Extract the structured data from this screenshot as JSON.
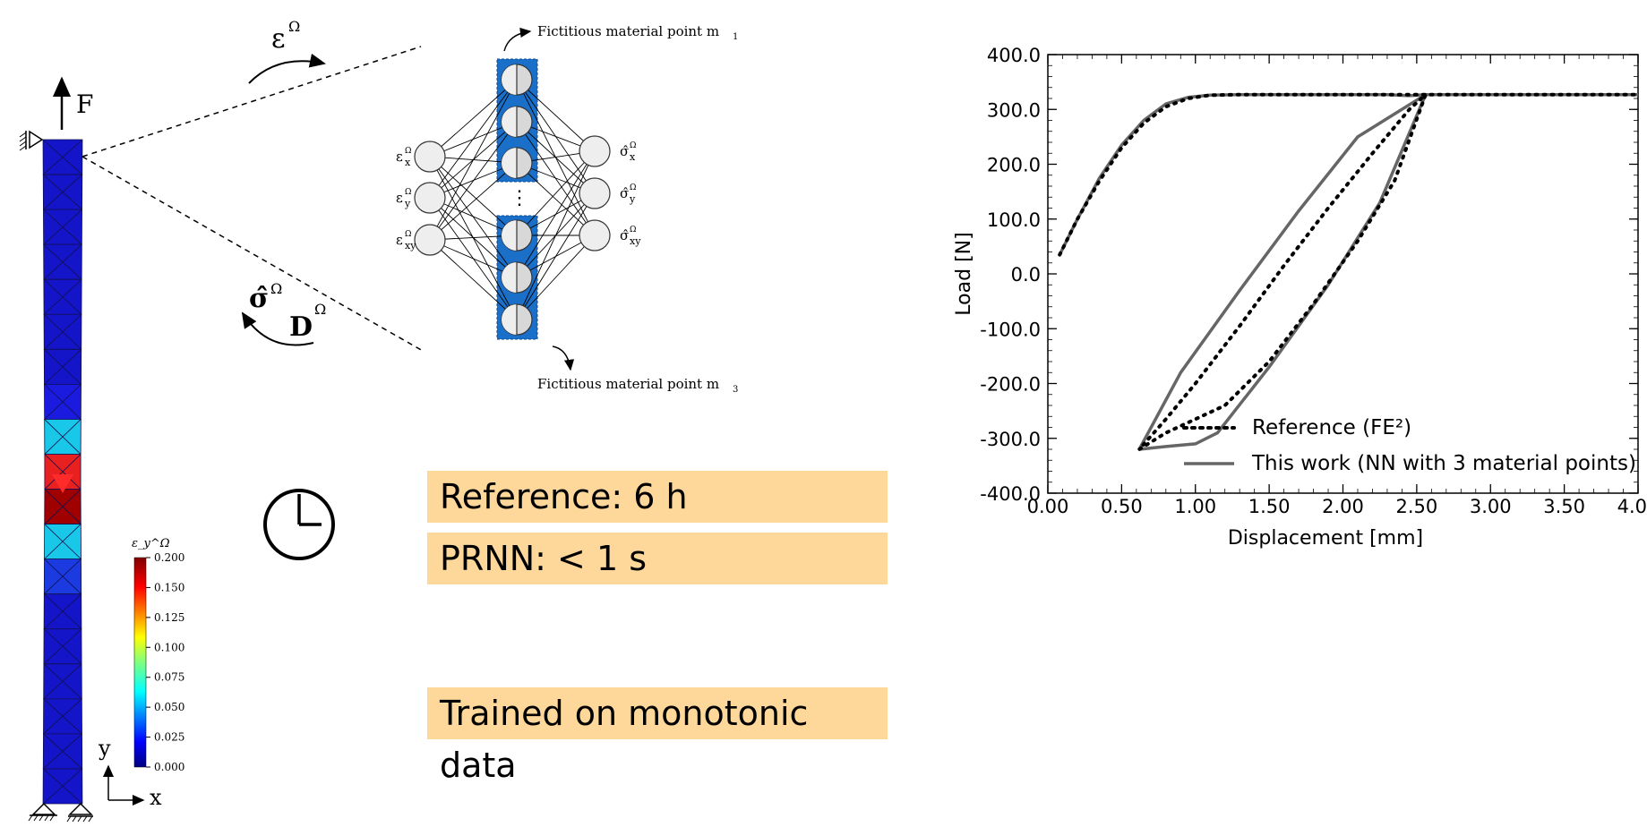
{
  "beam": {
    "force_label": "F",
    "colorbar": {
      "title": "ε_y^Ω",
      "ticks": [
        "0.200",
        "0.150",
        "0.125",
        "0.100",
        "0.075",
        "0.050",
        "0.025",
        "0.000"
      ]
    },
    "axis_y": "y",
    "axis_x": "x"
  },
  "arrows": {
    "strain": "ε",
    "strain_sup": "Ω",
    "stress": "σ̂",
    "stress_sup": "Ω",
    "tangent": "D",
    "tangent_sup": "Ω"
  },
  "network": {
    "top_label": "Fictitious material point m",
    "top_sub": "1",
    "bottom_label": "Fictitious material point m",
    "bottom_sub": "3",
    "inputs": [
      {
        "sym": "ε",
        "sup": "Ω",
        "sub": "x"
      },
      {
        "sym": "ε",
        "sup": "Ω",
        "sub": "y"
      },
      {
        "sym": "ε",
        "sup": "Ω",
        "sub": "xy"
      }
    ],
    "outputs": [
      {
        "sym": "σ̂",
        "sup": "Ω",
        "sub": "x"
      },
      {
        "sym": "σ̂",
        "sup": "Ω",
        "sub": "y"
      },
      {
        "sym": "σ̂",
        "sup": "Ω",
        "sub": "xy"
      }
    ],
    "ellipsis": "⋮"
  },
  "boxes": {
    "reference": "Reference:  6 h",
    "prnn": "PRNN: < 1 s",
    "trained": "Trained on monotonic data"
  },
  "clock_icon": "clock-icon",
  "chart_data": {
    "type": "line",
    "xlabel": "Displacement [mm]",
    "ylabel": "Load [N]",
    "xlim": [
      0.0,
      4.0
    ],
    "ylim": [
      -400.0,
      400.0
    ],
    "xticks": [
      "0.00",
      "0.50",
      "1.00",
      "1.50",
      "2.00",
      "2.50",
      "3.00",
      "3.50",
      "4.00"
    ],
    "yticks": [
      "400.0",
      "300.0",
      "200.0",
      "100.0",
      "0.0",
      "-100.0",
      "-200.0",
      "-300.0",
      "-400.0"
    ],
    "grid": false,
    "legend_position": "bottom-right",
    "series": [
      {
        "name": "Reference (FE²)",
        "style": "dotted",
        "color": "#000000",
        "x": [
          0.08,
          0.2,
          0.35,
          0.5,
          0.65,
          0.8,
          0.95,
          1.1,
          1.3,
          1.6,
          2.0,
          2.3,
          2.55,
          2.56,
          2.45,
          2.2,
          1.9,
          1.6,
          1.3,
          1.0,
          0.8,
          0.62,
          0.8,
          1.0,
          1.2,
          1.5,
          1.8,
          2.1,
          2.35,
          2.56,
          3.0,
          3.5,
          4.0
        ],
        "y": [
          35,
          100,
          170,
          230,
          275,
          305,
          320,
          326,
          327,
          327,
          327,
          327,
          327,
          327,
          300,
          220,
          120,
          15,
          -95,
          -200,
          -265,
          -320,
          -290,
          -265,
          -240,
          -160,
          -55,
          60,
          170,
          327,
          327,
          327,
          327
        ]
      },
      {
        "name": "This work (NN with 3 material points)",
        "style": "solid",
        "color": "#666666",
        "x": [
          0.08,
          0.2,
          0.35,
          0.5,
          0.65,
          0.8,
          0.95,
          1.1,
          1.3,
          1.6,
          2.0,
          2.3,
          2.45,
          2.56,
          2.1,
          1.7,
          1.3,
          0.9,
          0.62,
          0.8,
          1.0,
          1.15,
          1.5,
          1.9,
          2.25,
          2.56,
          3.0,
          3.5,
          4.0
        ],
        "y": [
          35,
          100,
          175,
          235,
          280,
          310,
          322,
          326,
          327,
          327,
          327,
          327,
          325,
          327,
          250,
          115,
          -30,
          -180,
          -320,
          -315,
          -310,
          -290,
          -170,
          -20,
          130,
          327,
          327,
          327,
          327
        ]
      }
    ]
  }
}
